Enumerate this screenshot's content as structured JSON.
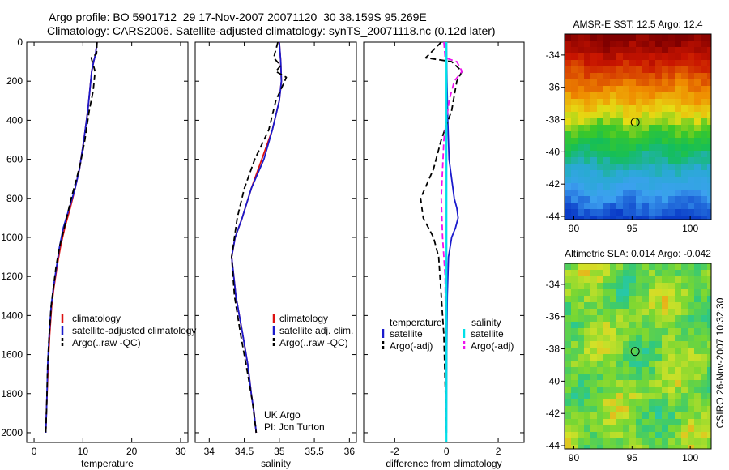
{
  "title_line1": "Argo profile: BO 5901712_29 17-Nov-2007 20071120_30 38.159S 95.269E",
  "title_line2": "Climatology: CARS2006. Satellite-adjusted climatology: synTS_20071118.nc (0.12d later)",
  "side_label": "CSIRO 26-Nov-2007 10:32:30",
  "colors": {
    "climatology": "#dd1111",
    "satellite": "#1a1acc",
    "argo": "#000000",
    "satellite_s": "#00e0e8",
    "argo_s": "#ee11ee"
  },
  "chart_data": [
    {
      "id": "temperature",
      "type": "line",
      "xlabel": "temperature",
      "xlim": [
        -1.5,
        31.5
      ],
      "ylim": [
        2050,
        0
      ],
      "xticks": [
        0,
        10,
        20,
        30
      ],
      "yticks": [
        0,
        200,
        400,
        600,
        800,
        1000,
        1200,
        1400,
        1600,
        1800,
        2000
      ],
      "legend": [
        "climatology",
        "satellite-adjusted climatology",
        "Argo(..raw -QC)"
      ],
      "series": [
        {
          "name": "climatology",
          "style": "solid",
          "color": "climatology",
          "x": [
            12.9,
            12.6,
            12.2,
            11.8,
            11.4,
            11.0,
            10.2,
            9.3,
            8.4,
            7.4,
            6.3,
            5.4,
            4.7,
            4.1,
            3.6,
            3.2,
            2.9,
            2.6,
            2.4
          ],
          "y": [
            0,
            60,
            100,
            150,
            250,
            350,
            500,
            650,
            750,
            850,
            950,
            1050,
            1150,
            1250,
            1350,
            1500,
            1650,
            1850,
            2000
          ]
        },
        {
          "name": "satellite-adjusted climatology",
          "style": "solid",
          "color": "satellite",
          "x": [
            12.9,
            12.6,
            12.2,
            11.8,
            11.4,
            11.0,
            10.2,
            9.3,
            8.4,
            7.2,
            6.0,
            5.2,
            4.6,
            4.0,
            3.5,
            3.1,
            2.8,
            2.6,
            2.4
          ],
          "y": [
            0,
            60,
            100,
            150,
            250,
            350,
            500,
            650,
            750,
            850,
            950,
            1050,
            1150,
            1250,
            1350,
            1500,
            1650,
            1850,
            2000
          ]
        },
        {
          "name": "Argo(..raw -QC)",
          "style": "dash",
          "color": "argo",
          "x": [
            12.9,
            12.8,
            11.7,
            12.5,
            12.1,
            11.3,
            10.4,
            9.5,
            8.7,
            7.6,
            6.2,
            5.2,
            4.5,
            4.0,
            3.5,
            3.1,
            2.8,
            2.6,
            2.4
          ],
          "y": [
            0,
            60,
            80,
            150,
            250,
            350,
            500,
            620,
            700,
            800,
            950,
            1050,
            1150,
            1250,
            1350,
            1500,
            1650,
            1850,
            2000
          ]
        }
      ]
    },
    {
      "id": "salinity",
      "type": "line",
      "xlabel": "salinity",
      "xlim": [
        33.8,
        36.1
      ],
      "ylim": [
        2050,
        0
      ],
      "xticks": [
        34,
        34.5,
        35,
        35.5,
        36
      ],
      "xticklabels": [
        "34",
        "34.5",
        "35",
        "35.5",
        "36"
      ],
      "legend": [
        "climatology",
        "satellite adj. clim.",
        "Argo(..raw -QC)"
      ],
      "annotation": [
        "UK Argo",
        "PI: Jon Turton"
      ],
      "series": [
        {
          "name": "climatology",
          "style": "solid",
          "color": "climatology",
          "x": [
            35.0,
            35.02,
            35.03,
            35.0,
            34.9,
            34.75,
            34.6,
            34.47,
            34.37,
            34.32,
            34.38,
            34.48,
            34.55,
            34.6,
            34.64,
            34.67
          ],
          "y": [
            0,
            100,
            200,
            300,
            450,
            600,
            750,
            900,
            1000,
            1100,
            1300,
            1500,
            1650,
            1800,
            1900,
            2000
          ]
        },
        {
          "name": "satellite adj. clim.",
          "style": "solid",
          "color": "satellite",
          "x": [
            35.0,
            35.02,
            35.03,
            35.0,
            34.9,
            34.78,
            34.6,
            34.47,
            34.37,
            34.32,
            34.38,
            34.48,
            34.55,
            34.6,
            34.64,
            34.67
          ],
          "y": [
            0,
            100,
            200,
            300,
            450,
            600,
            750,
            900,
            1000,
            1100,
            1300,
            1500,
            1650,
            1800,
            1900,
            2000
          ]
        },
        {
          "name": "Argo(..raw -QC)",
          "style": "dash",
          "color": "argo",
          "x": [
            34.98,
            34.92,
            35.02,
            34.95,
            35.1,
            34.95,
            34.85,
            34.65,
            34.5,
            34.4,
            34.32,
            34.36,
            34.45,
            34.55,
            34.62,
            34.67
          ],
          "y": [
            0,
            80,
            120,
            150,
            180,
            300,
            450,
            600,
            750,
            900,
            1100,
            1300,
            1500,
            1700,
            1850,
            2000
          ]
        }
      ]
    },
    {
      "id": "difference",
      "type": "line",
      "xlabel": "difference from climatology",
      "xlim": [
        -3.2,
        3.0
      ],
      "ylim": [
        2050,
        0
      ],
      "xticks": [
        -2,
        0,
        2
      ],
      "legend_temperature_title": "temperature",
      "legend_salinity_title": "salinity",
      "legend": [
        "satellite",
        "Argo(-adj)",
        "satellite",
        "Argo(-adj)"
      ],
      "series": [
        {
          "name": "satellite",
          "style": "solid",
          "color": "satellite",
          "x": [
            0,
            0.02,
            0.05,
            0.1,
            0.2,
            0.3,
            0.4,
            0.45,
            0.35,
            0.2,
            0.08,
            0.03,
            0.01,
            0
          ],
          "y": [
            0,
            200,
            400,
            600,
            700,
            800,
            850,
            900,
            950,
            1000,
            1100,
            1300,
            1600,
            2000
          ]
        },
        {
          "name": "Argo(-adj)",
          "style": "dash",
          "color": "argo",
          "x": [
            -0.2,
            -0.8,
            0.2,
            0.6,
            0.4,
            0.2,
            -0.2,
            -0.5,
            -1.0,
            -0.9,
            -0.5,
            -0.3,
            -0.2,
            -0.1,
            0
          ],
          "y": [
            0,
            80,
            100,
            150,
            200,
            350,
            500,
            650,
            800,
            900,
            1000,
            1100,
            1300,
            1500,
            2000
          ]
        },
        {
          "name": "satellite",
          "style": "solid",
          "color": "satellite_s",
          "x": [
            0,
            0,
            0,
            0,
            0,
            0
          ],
          "y": [
            0,
            400,
            800,
            1200,
            1600,
            2000
          ]
        },
        {
          "name": "Argo(-adj)",
          "style": "dash",
          "color": "argo_s",
          "x": [
            -0.1,
            -0.05,
            0.4,
            0.6,
            0.3,
            0.1,
            -0.1,
            -0.2,
            -0.15,
            -0.05,
            0
          ],
          "y": [
            0,
            80,
            100,
            150,
            200,
            300,
            500,
            800,
            1000,
            1200,
            2000
          ]
        }
      ]
    },
    {
      "id": "sst_map",
      "type": "heatmap",
      "title": "AMSR-E SST: 12.5 Argo: 12.4",
      "xlim": [
        89.2,
        101.8
      ],
      "ylim": [
        -44.2,
        -32.7
      ],
      "xticks": [
        90,
        95,
        100
      ],
      "yticks": [
        -34,
        -36,
        -38,
        -40,
        -42,
        -44
      ],
      "profile_location": [
        95.27,
        -38.16
      ]
    },
    {
      "id": "sla_map",
      "type": "heatmap",
      "title": "Altimetric SLA: 0.014 Argo: -0.042",
      "xlim": [
        89.2,
        101.8
      ],
      "ylim": [
        -44.2,
        -32.7
      ],
      "xticks": [
        90,
        95,
        100
      ],
      "yticks": [
        -34,
        -36,
        -38,
        -40,
        -42,
        -44
      ],
      "profile_location": [
        95.27,
        -38.16
      ]
    }
  ]
}
